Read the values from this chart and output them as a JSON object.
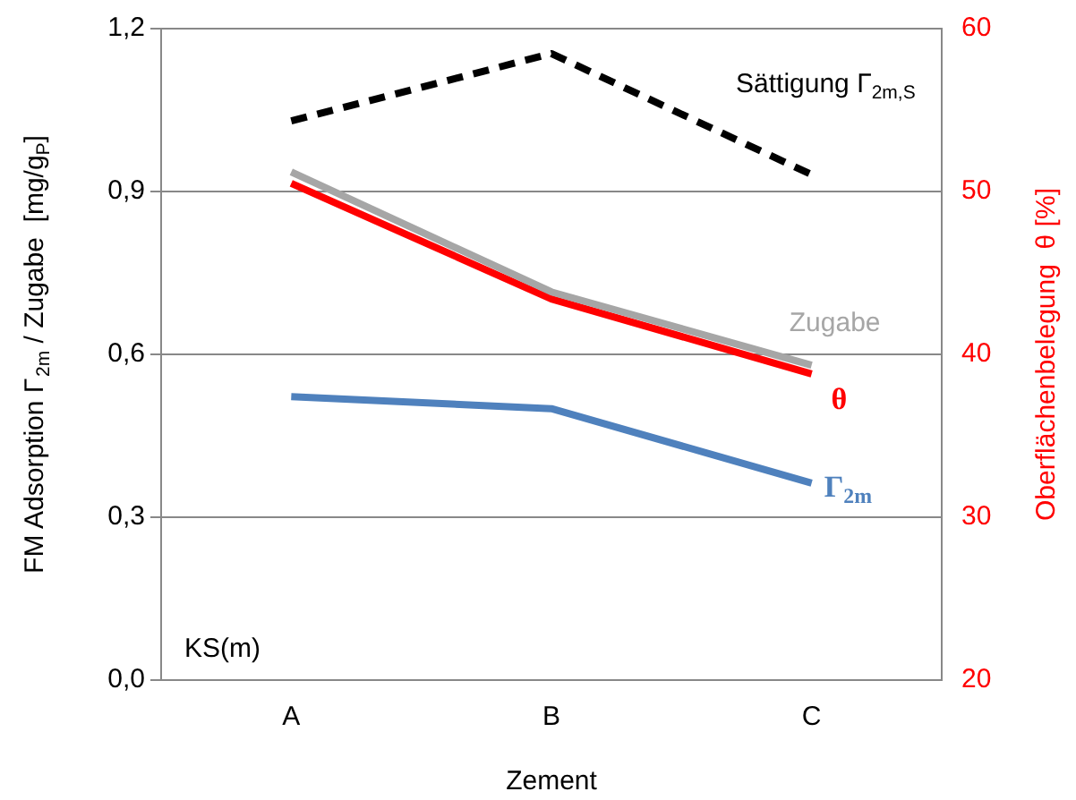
{
  "chart_data": {
    "type": "line",
    "categories": [
      "A",
      "B",
      "C"
    ],
    "xlabel": "Zement",
    "ylabel": "FM Adsorption Γ$_{2m}$ / Zugabe  [mg/g$_{P}$]",
    "y2label": "Oberflächenbelegung  θ [%]",
    "ylim": [
      0,
      1.2
    ],
    "yticks": [
      {
        "value": 0,
        "label": "0,0"
      },
      {
        "value": 0.3,
        "label": "0,3"
      },
      {
        "value": 0.6,
        "label": "0,6"
      },
      {
        "value": 0.9,
        "label": "0,9"
      },
      {
        "value": 1.2,
        "label": "1,2"
      }
    ],
    "y2lim": [
      20,
      60
    ],
    "y2ticks": [
      20,
      30,
      40,
      50,
      60
    ],
    "grid": "y",
    "legend": false,
    "marker": "none",
    "annotations": [
      "KS(m)"
    ],
    "series": [
      {
        "name": "Sättigung Γ$_{2m,S}$",
        "color": "#000000",
        "values": [
          1.03,
          1.154,
          0.931
        ],
        "line_style": "dashed"
      },
      {
        "name": "Zugabe",
        "color": "#a6a6a6",
        "values": [
          0.936,
          0.715,
          0.58
        ]
      },
      {
        "name": "θ",
        "color": "#ff0000",
        "values": [
          50.5,
          43.4,
          38.8
        ],
        "axis": "y2"
      },
      {
        "name": "Γ$_{2m}$",
        "color": "#4f81bd",
        "values": [
          0.522,
          0.5,
          0.363
        ]
      }
    ]
  }
}
